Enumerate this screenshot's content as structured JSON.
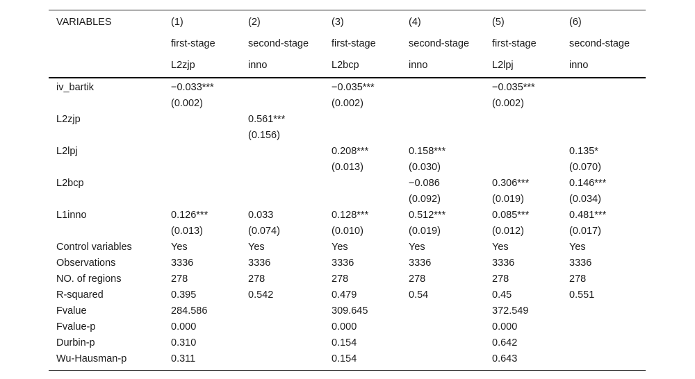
{
  "header": {
    "variables_label": "VARIABLES",
    "col_numbers": [
      "(1)",
      "(2)",
      "(3)",
      "(4)",
      "(5)",
      "(6)"
    ],
    "stages": [
      "first-stage",
      "second-stage",
      "first-stage",
      "second-stage",
      "first-stage",
      "second-stage"
    ],
    "dependent_vars": [
      "L2zjp",
      "inno",
      "L2bcp",
      "inno",
      "L2lpj",
      "inno"
    ]
  },
  "rows": [
    {
      "label": "iv_bartik",
      "cells": [
        "−0.033***",
        "",
        "−0.035***",
        "",
        "−0.035***",
        ""
      ]
    },
    {
      "label": "",
      "cells": [
        "(0.002)",
        "",
        "(0.002)",
        "",
        "(0.002)",
        ""
      ]
    },
    {
      "label": "L2zjp",
      "cells": [
        "",
        "0.561***",
        "",
        "",
        "",
        ""
      ]
    },
    {
      "label": "",
      "cells": [
        "",
        "(0.156)",
        "",
        "",
        "",
        ""
      ]
    },
    {
      "label": "L2lpj",
      "cells": [
        "",
        "",
        "0.208***",
        "0.158***",
        "",
        "0.135*"
      ]
    },
    {
      "label": "",
      "cells": [
        "",
        "",
        "(0.013)",
        "(0.030)",
        "",
        "(0.070)"
      ]
    },
    {
      "label": "L2bcp",
      "cells": [
        "",
        "",
        "",
        "−0.086",
        "0.306***",
        "0.146***"
      ]
    },
    {
      "label": "",
      "cells": [
        "",
        "",
        "",
        "(0.092)",
        "(0.019)",
        "(0.034)"
      ]
    },
    {
      "label": "L1inno",
      "cells": [
        "0.126***",
        "0.033",
        "0.128***",
        "0.512***",
        "0.085***",
        "0.481***"
      ]
    },
    {
      "label": "",
      "cells": [
        "(0.013)",
        "(0.074)",
        "(0.010)",
        "(0.019)",
        "(0.012)",
        "(0.017)"
      ]
    },
    {
      "label": "Control variables",
      "cells": [
        "Yes",
        "Yes",
        "Yes",
        "Yes",
        "Yes",
        "Yes"
      ]
    },
    {
      "label": "Observations",
      "cells": [
        "3336",
        "3336",
        "3336",
        "3336",
        "3336",
        "3336"
      ]
    },
    {
      "label": "NO. of regions",
      "cells": [
        "278",
        "278",
        "278",
        "278",
        "278",
        "278"
      ]
    },
    {
      "label": "R-squared",
      "cells": [
        "0.395",
        "0.542",
        "0.479",
        "0.54",
        "0.45",
        "0.551"
      ]
    },
    {
      "label": "Fvalue",
      "cells": [
        "284.586",
        "",
        "309.645",
        "",
        "372.549",
        ""
      ]
    },
    {
      "label": "Fvalue-p",
      "cells": [
        "0.000",
        "",
        "0.000",
        "",
        "0.000",
        ""
      ]
    },
    {
      "label": "Durbin-p",
      "cells": [
        "0.310",
        "",
        "0.154",
        "",
        "0.642",
        ""
      ]
    },
    {
      "label": "Wu-Hausman-p",
      "cells": [
        "0.311",
        "",
        "0.154",
        "",
        "0.643",
        ""
      ]
    }
  ]
}
